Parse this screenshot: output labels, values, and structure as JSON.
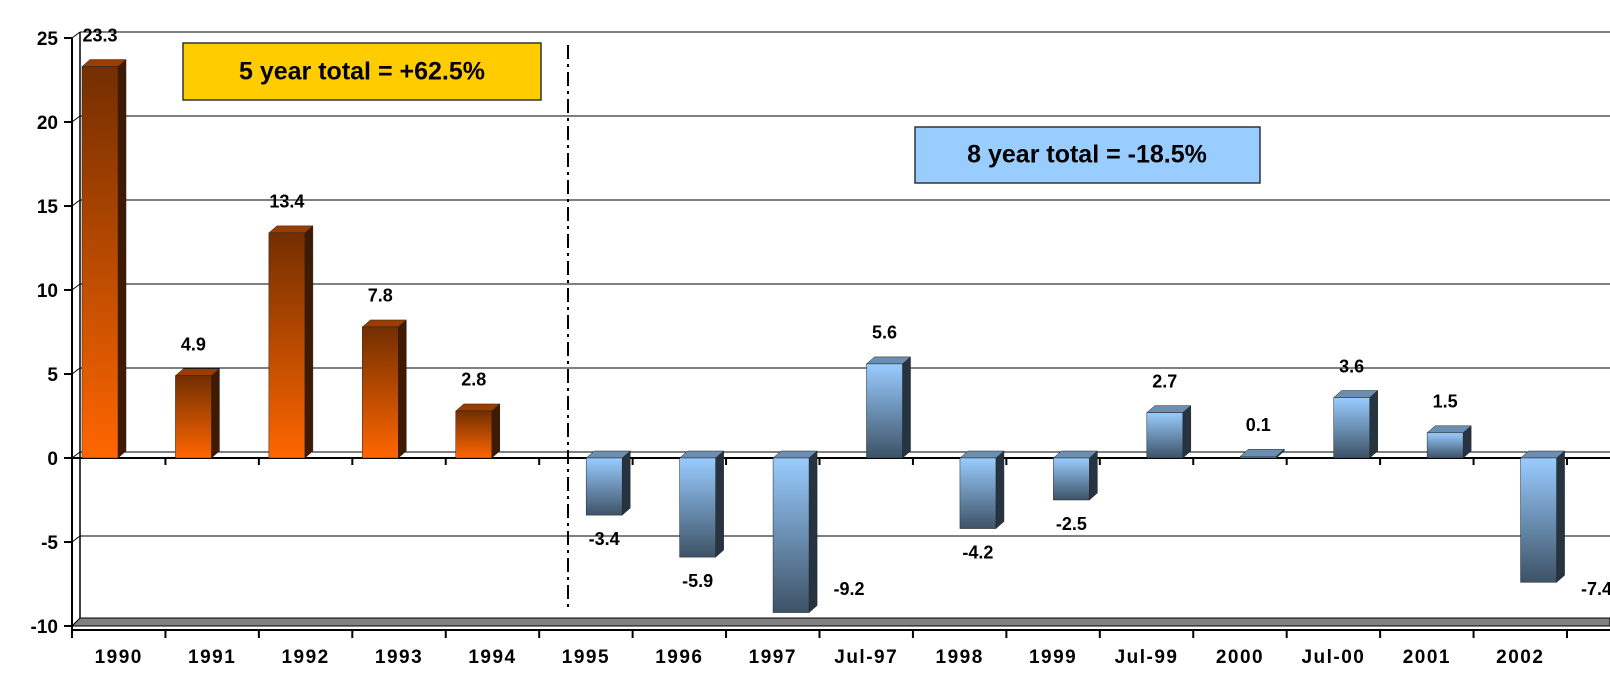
{
  "chart_data": {
    "type": "bar3d",
    "categories": [
      "1990",
      "1991",
      "1992",
      "1993",
      "1994",
      "1995",
      "1996",
      "1997",
      "Jul-97",
      "1998",
      "1999",
      "Jul-99",
      "2000",
      "Jul-00",
      "2001",
      "2002"
    ],
    "series": [
      {
        "color": "#ff6600",
        "values": [
          23.3,
          4.9,
          13.4,
          7.8,
          2.8,
          null,
          null,
          null,
          null,
          null,
          null,
          null,
          null,
          null,
          null,
          null
        ]
      },
      {
        "color": "#99ccff",
        "values": [
          null,
          null,
          null,
          null,
          null,
          -3.4,
          -5.9,
          -9.2,
          5.6,
          -4.2,
          -2.5,
          2.7,
          0.1,
          3.6,
          1.5,
          -7.4
        ]
      }
    ],
    "ylim": [
      -10,
      25
    ],
    "yticks": [
      -10,
      -5,
      0,
      5,
      10,
      15,
      20,
      25
    ],
    "grid": true,
    "annotations": [
      "5 year total = +62.5%",
      "8 year total = -18.5%"
    ]
  }
}
